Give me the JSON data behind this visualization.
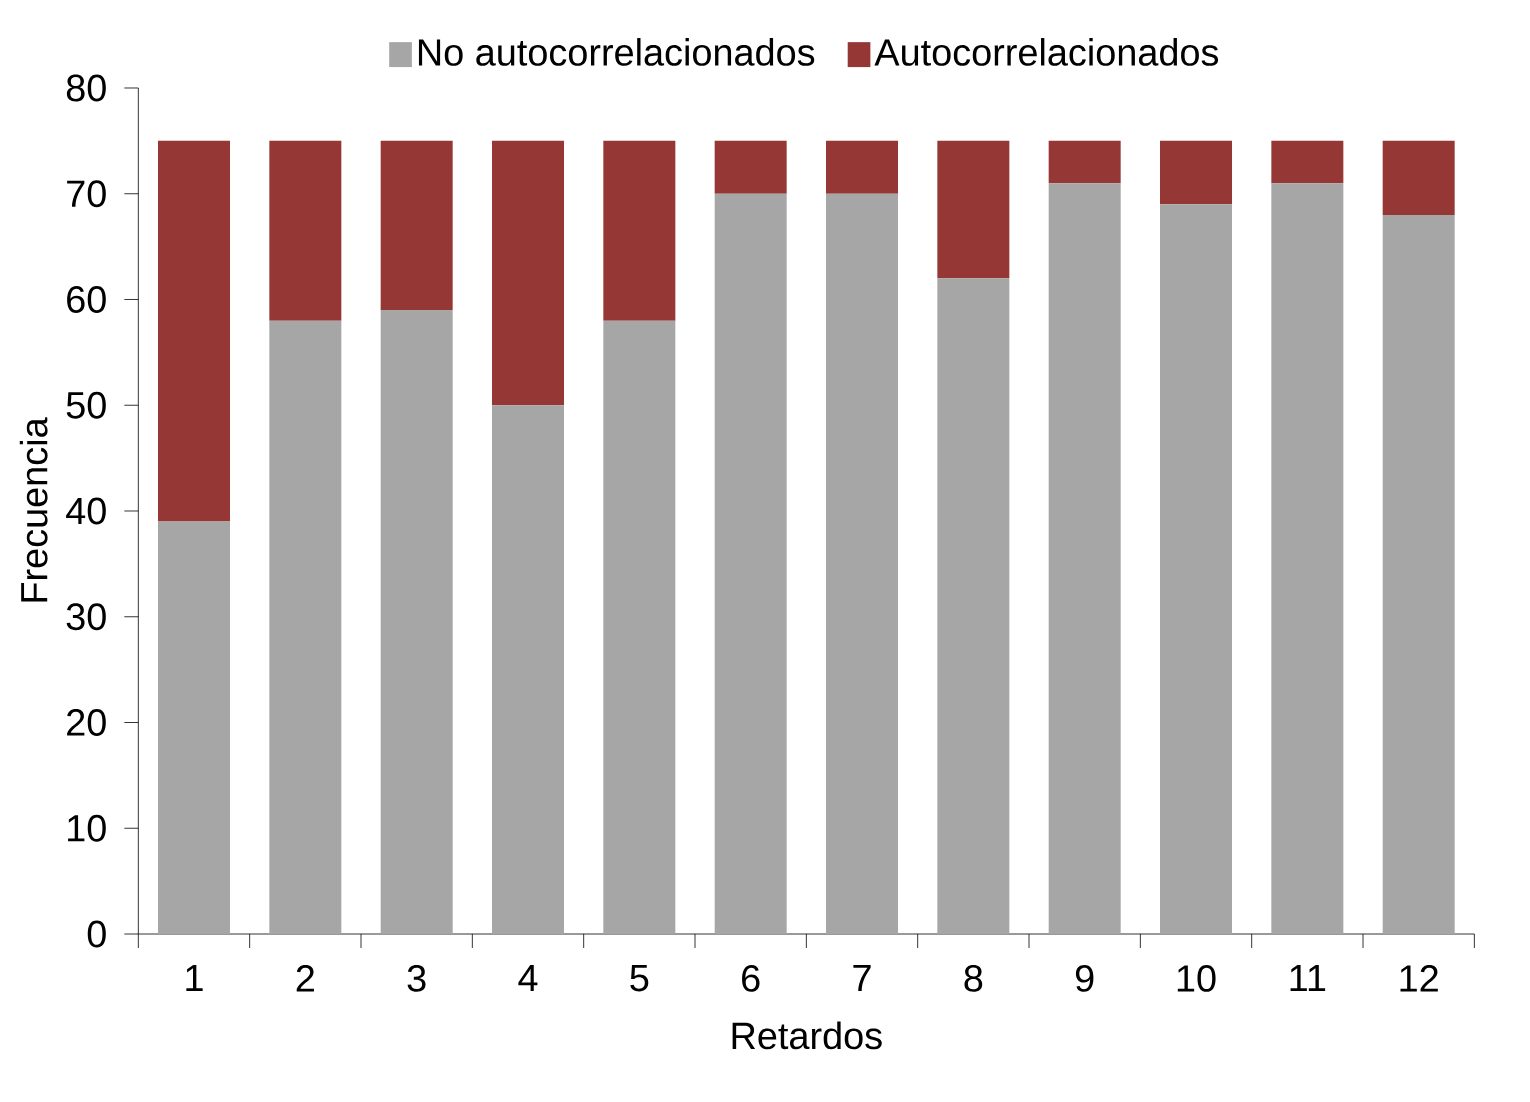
{
  "chart_data": {
    "type": "bar",
    "stacked": true,
    "xlabel": "Retardos",
    "ylabel": "Frecuencia",
    "categories": [
      "1",
      "2",
      "3",
      "4",
      "5",
      "6",
      "7",
      "8",
      "9",
      "10",
      "11",
      "12"
    ],
    "series": [
      {
        "name": "No autocorrelacionados",
        "color": "#a6a6a6",
        "values": [
          39,
          58,
          59,
          50,
          58,
          70,
          70,
          62,
          71,
          69,
          71,
          68
        ]
      },
      {
        "name": "Autocorrelacionados",
        "color": "#953735",
        "values": [
          36,
          17,
          16,
          25,
          17,
          5,
          5,
          13,
          4,
          6,
          4,
          7
        ]
      }
    ],
    "ylim": [
      0,
      80
    ],
    "yticks": [
      0,
      10,
      20,
      30,
      40,
      50,
      60,
      70,
      80
    ],
    "legend": "top"
  }
}
